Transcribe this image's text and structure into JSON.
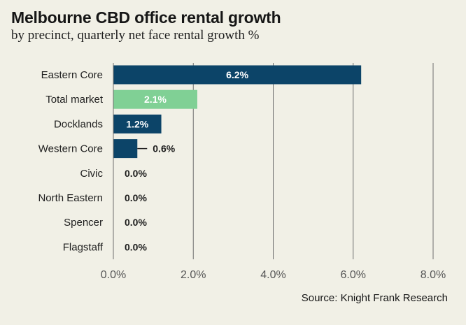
{
  "title": "Melbourne CBD office rental growth",
  "subtitle": "by precinct, quarterly net face rental growth %",
  "source": "Source: Knight Frank Research",
  "colors": {
    "background": "#f1f0e6",
    "bar_primary": "#0c4468",
    "bar_highlight": "#80d095",
    "grid": "#6e6e6e",
    "text": "#1e1e1e",
    "axis_text": "#555555"
  },
  "chart_data": {
    "type": "bar",
    "orientation": "horizontal",
    "categories": [
      "Eastern Core",
      "Total market",
      "Docklands",
      "Western Core",
      "Civic",
      "North Eastern",
      "Spencer",
      "Flagstaff"
    ],
    "values": [
      6.2,
      2.1,
      1.2,
      0.6,
      0.0,
      0.0,
      0.0,
      0.0
    ],
    "data_labels": [
      "6.2%",
      "2.1%",
      "1.2%",
      "0.6%",
      "0.0%",
      "0.0%",
      "0.0%",
      "0.0%"
    ],
    "highlight": "Total market",
    "xlim": [
      0,
      8
    ],
    "xticks": [
      0,
      2,
      4,
      6,
      8
    ],
    "xtick_labels": [
      "0.0%",
      "2.0%",
      "4.0%",
      "6.0%",
      "8.0%"
    ],
    "grid": "vertical",
    "legend": "none"
  }
}
